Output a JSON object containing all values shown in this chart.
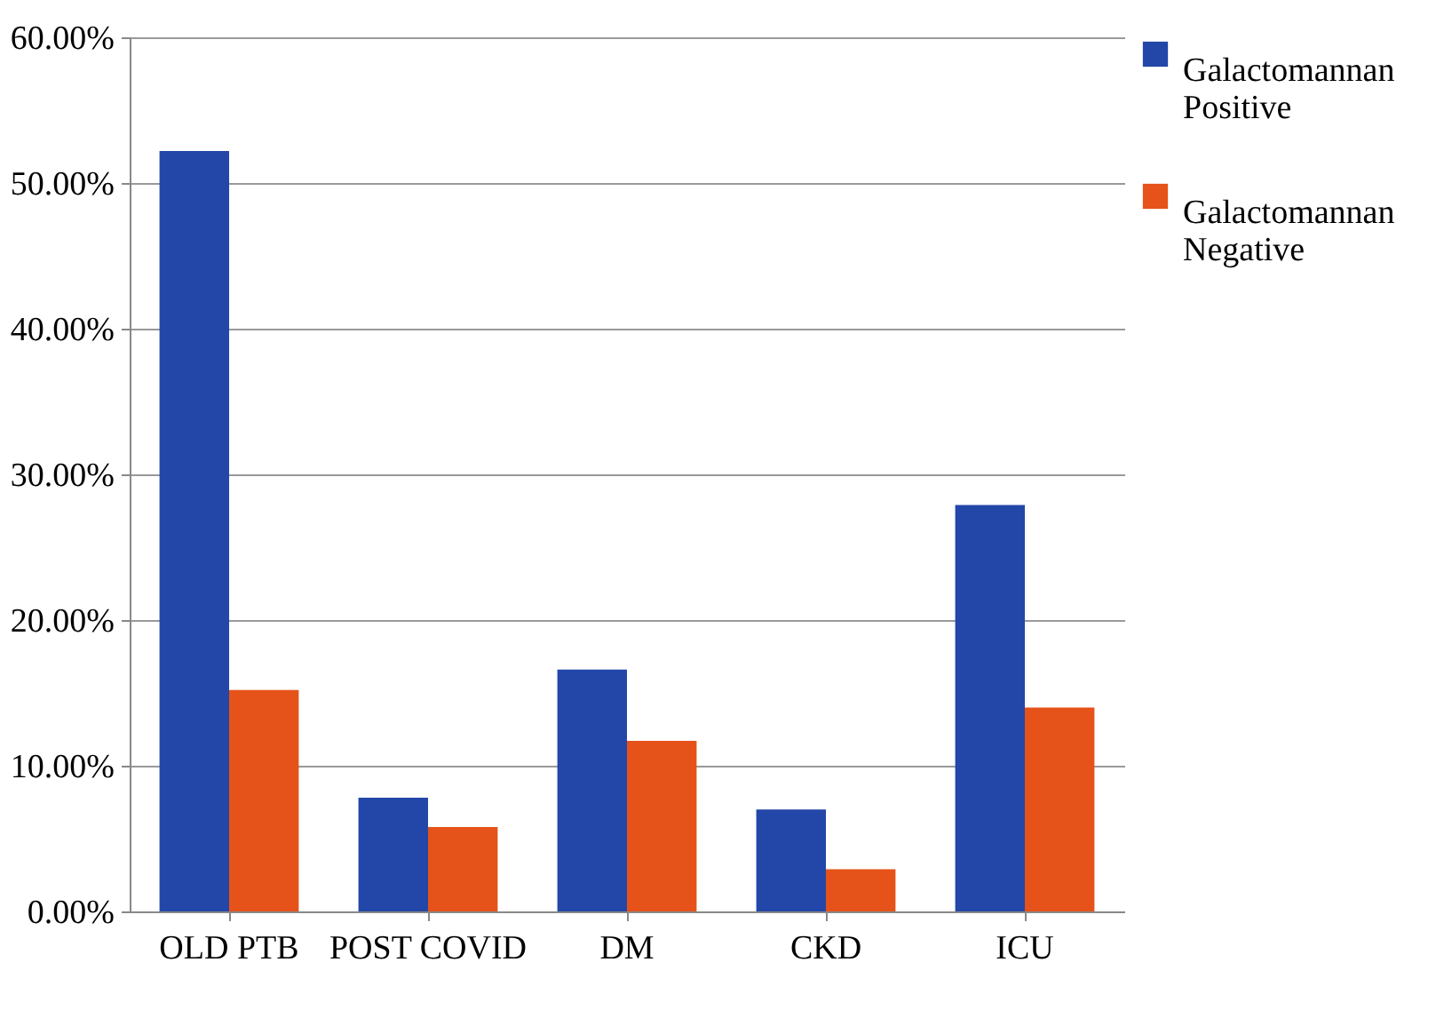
{
  "chart_data": {
    "type": "bar",
    "categories": [
      "OLD PTB",
      "POST COVID",
      "DM",
      "CKD",
      "ICU"
    ],
    "series": [
      {
        "name": "Galactomannan Positive",
        "color": "#2347a8",
        "values": [
          52.2,
          7.8,
          16.6,
          7.0,
          27.9
        ]
      },
      {
        "name": "Galactomannan Negative",
        "color": "#e5531a",
        "values": [
          15.2,
          5.8,
          11.7,
          2.9,
          14.0
        ]
      }
    ],
    "ylim": [
      0,
      60
    ],
    "yticks": [
      {
        "value": 0,
        "label": "0.00%"
      },
      {
        "value": 10,
        "label": "10.00%"
      },
      {
        "value": 20,
        "label": "20.00%"
      },
      {
        "value": 30,
        "label": "30.00%"
      },
      {
        "value": 40,
        "label": "40.00%"
      },
      {
        "value": 50,
        "label": "50.00%"
      },
      {
        "value": 60,
        "label": "60.00%"
      }
    ],
    "grid": "y",
    "legend": "right"
  }
}
